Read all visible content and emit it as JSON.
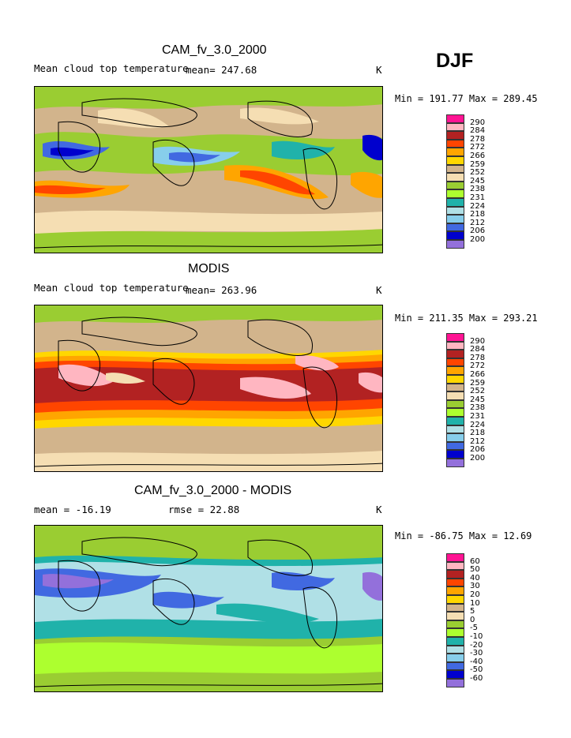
{
  "season_label": "DJF",
  "panels": [
    {
      "title": "CAM_fv_3.0_2000",
      "variable": "Mean cloud top temperature",
      "mean_text": "mean= 247.68",
      "units": "K",
      "min_max": "Min = 191.77 Max = 289.45",
      "legend_levels": [
        "290",
        "284",
        "278",
        "272",
        "266",
        "259",
        "252",
        "245",
        "238",
        "231",
        "224",
        "218",
        "212",
        "206",
        "200"
      ],
      "legend_colors": [
        "#ff1493",
        "#ffb6c1",
        "#b22222",
        "#ff4500",
        "#ffa500",
        "#ffd700",
        "#d2b48c",
        "#f5deb3",
        "#9acd32",
        "#adff2f",
        "#20b2aa",
        "#b0e0e6",
        "#87ceeb",
        "#4169e1",
        "#0000cd",
        "#9370db"
      ]
    },
    {
      "title": "MODIS",
      "variable": "Mean cloud top temperature",
      "mean_text": "mean= 263.96",
      "units": "K",
      "min_max": "Min = 211.35 Max = 293.21",
      "legend_levels": [
        "290",
        "284",
        "278",
        "272",
        "266",
        "259",
        "252",
        "245",
        "238",
        "231",
        "224",
        "218",
        "212",
        "206",
        "200"
      ],
      "legend_colors": [
        "#ff1493",
        "#ffb6c1",
        "#b22222",
        "#ff4500",
        "#ffa500",
        "#ffd700",
        "#d2b48c",
        "#f5deb3",
        "#9acd32",
        "#adff2f",
        "#20b2aa",
        "#b0e0e6",
        "#87ceeb",
        "#4169e1",
        "#0000cd",
        "#9370db"
      ]
    },
    {
      "title": "CAM_fv_3.0_2000 - MODIS",
      "variable": "mean = -16.19",
      "mean_text": "rmse = 22.88",
      "units": "K",
      "min_max": "Min = -86.75 Max = 12.69",
      "legend_levels": [
        "60",
        "50",
        "40",
        "30",
        "20",
        "10",
        "5",
        "0",
        "-5",
        "-10",
        "-20",
        "-30",
        "-40",
        "-50",
        "-60"
      ],
      "legend_colors": [
        "#ff1493",
        "#ffb6c1",
        "#b22222",
        "#ff4500",
        "#ffa500",
        "#ffd700",
        "#d2b48c",
        "#f5deb3",
        "#9acd32",
        "#adff2f",
        "#20b2aa",
        "#b0e0e6",
        "#87ceeb",
        "#4169e1",
        "#0000cd",
        "#9370db"
      ]
    }
  ]
}
